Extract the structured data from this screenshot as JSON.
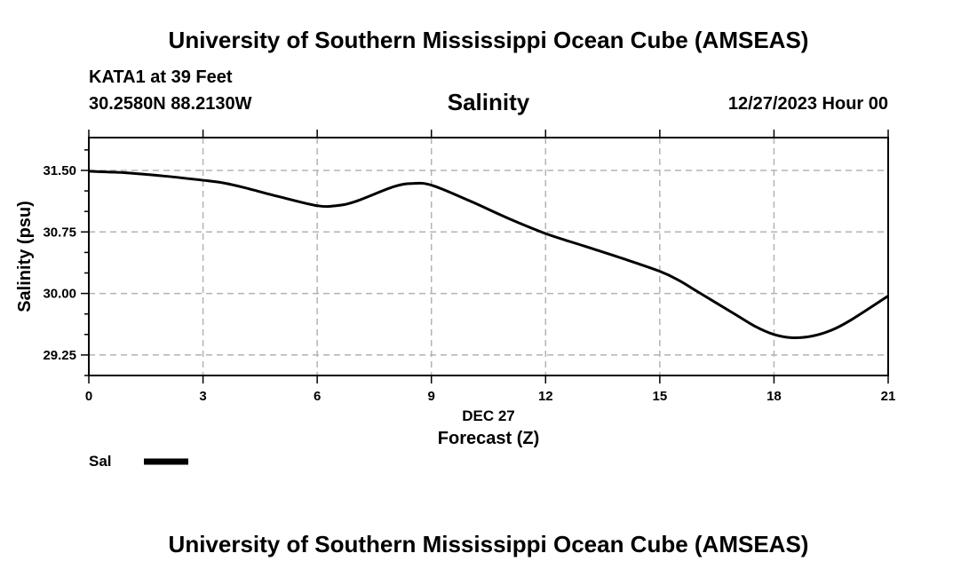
{
  "header": {
    "title": "University of Southern Mississippi Ocean Cube (AMSEAS)",
    "station": "KATA1 at 39 Feet",
    "coords": "30.2580N  88.2130W",
    "subtitle": "Salinity",
    "datetime": "12/27/2023 Hour 00"
  },
  "footer": {
    "title": "University of Southern Mississippi Ocean Cube (AMSEAS)"
  },
  "chart_data": {
    "type": "line",
    "title": "Salinity",
    "xlabel": "Forecast (Z)",
    "xlabel_date": "DEC 27",
    "ylabel": "Salinity (psu)",
    "xlim": [
      0,
      21
    ],
    "ylim": [
      29.0,
      31.9
    ],
    "x_ticks": [
      0,
      3,
      6,
      9,
      12,
      15,
      18,
      21
    ],
    "x_tick_labels": [
      "0",
      "3",
      "6",
      "9",
      "12",
      "15",
      "18",
      "21"
    ],
    "y_ticks": [
      29.25,
      30.0,
      30.75,
      31.5
    ],
    "y_tick_labels": [
      "29.25",
      "30.00",
      "30.75",
      "31.50"
    ],
    "y_minor_ticks": [
      29.0,
      29.5,
      29.75,
      30.25,
      30.5,
      31.0,
      31.25,
      31.75
    ],
    "grid": true,
    "legend": [
      {
        "label": "Sal",
        "color": "#000000"
      }
    ],
    "series": [
      {
        "name": "Sal",
        "x": [
          0,
          1,
          2,
          3,
          3.5,
          4,
          5,
          6,
          6.5,
          7,
          8,
          8.5,
          9,
          10,
          11,
          12,
          13,
          14,
          15,
          15.5,
          16,
          17,
          17.5,
          18,
          18.5,
          19,
          19.5,
          20,
          21
        ],
        "y": [
          31.49,
          31.47,
          31.43,
          31.38,
          31.35,
          31.3,
          31.18,
          31.07,
          31.07,
          31.12,
          31.3,
          31.34,
          31.32,
          31.13,
          30.92,
          30.73,
          30.58,
          30.43,
          30.27,
          30.16,
          30.02,
          29.74,
          29.6,
          29.5,
          29.46,
          29.48,
          29.55,
          29.67,
          29.97
        ]
      }
    ]
  }
}
